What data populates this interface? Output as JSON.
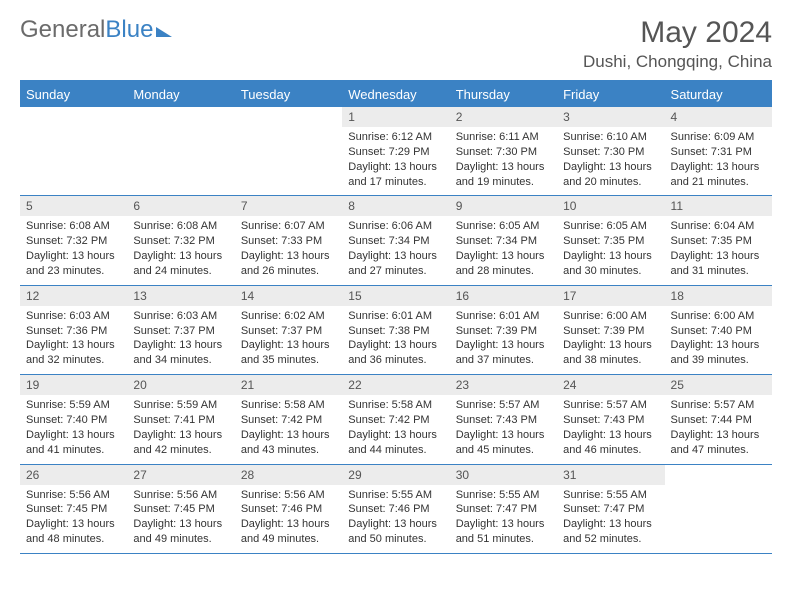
{
  "brand": {
    "general": "General",
    "blue": "Blue"
  },
  "header": {
    "month_title": "May 2024",
    "location": "Dushi, Chongqing, China"
  },
  "colors": {
    "accent": "#3b82c4",
    "text": "#333333",
    "muted": "#6b6b6b",
    "daynum_bg": "#ececec",
    "bg": "#ffffff"
  },
  "weekdays": [
    "Sunday",
    "Monday",
    "Tuesday",
    "Wednesday",
    "Thursday",
    "Friday",
    "Saturday"
  ],
  "weeks": [
    [
      {
        "n": "",
        "lines": []
      },
      {
        "n": "",
        "lines": []
      },
      {
        "n": "",
        "lines": []
      },
      {
        "n": "1",
        "lines": [
          "Sunrise: 6:12 AM",
          "Sunset: 7:29 PM",
          "Daylight: 13 hours",
          "and 17 minutes."
        ]
      },
      {
        "n": "2",
        "lines": [
          "Sunrise: 6:11 AM",
          "Sunset: 7:30 PM",
          "Daylight: 13 hours",
          "and 19 minutes."
        ]
      },
      {
        "n": "3",
        "lines": [
          "Sunrise: 6:10 AM",
          "Sunset: 7:30 PM",
          "Daylight: 13 hours",
          "and 20 minutes."
        ]
      },
      {
        "n": "4",
        "lines": [
          "Sunrise: 6:09 AM",
          "Sunset: 7:31 PM",
          "Daylight: 13 hours",
          "and 21 minutes."
        ]
      }
    ],
    [
      {
        "n": "5",
        "lines": [
          "Sunrise: 6:08 AM",
          "Sunset: 7:32 PM",
          "Daylight: 13 hours",
          "and 23 minutes."
        ]
      },
      {
        "n": "6",
        "lines": [
          "Sunrise: 6:08 AM",
          "Sunset: 7:32 PM",
          "Daylight: 13 hours",
          "and 24 minutes."
        ]
      },
      {
        "n": "7",
        "lines": [
          "Sunrise: 6:07 AM",
          "Sunset: 7:33 PM",
          "Daylight: 13 hours",
          "and 26 minutes."
        ]
      },
      {
        "n": "8",
        "lines": [
          "Sunrise: 6:06 AM",
          "Sunset: 7:34 PM",
          "Daylight: 13 hours",
          "and 27 minutes."
        ]
      },
      {
        "n": "9",
        "lines": [
          "Sunrise: 6:05 AM",
          "Sunset: 7:34 PM",
          "Daylight: 13 hours",
          "and 28 minutes."
        ]
      },
      {
        "n": "10",
        "lines": [
          "Sunrise: 6:05 AM",
          "Sunset: 7:35 PM",
          "Daylight: 13 hours",
          "and 30 minutes."
        ]
      },
      {
        "n": "11",
        "lines": [
          "Sunrise: 6:04 AM",
          "Sunset: 7:35 PM",
          "Daylight: 13 hours",
          "and 31 minutes."
        ]
      }
    ],
    [
      {
        "n": "12",
        "lines": [
          "Sunrise: 6:03 AM",
          "Sunset: 7:36 PM",
          "Daylight: 13 hours",
          "and 32 minutes."
        ]
      },
      {
        "n": "13",
        "lines": [
          "Sunrise: 6:03 AM",
          "Sunset: 7:37 PM",
          "Daylight: 13 hours",
          "and 34 minutes."
        ]
      },
      {
        "n": "14",
        "lines": [
          "Sunrise: 6:02 AM",
          "Sunset: 7:37 PM",
          "Daylight: 13 hours",
          "and 35 minutes."
        ]
      },
      {
        "n": "15",
        "lines": [
          "Sunrise: 6:01 AM",
          "Sunset: 7:38 PM",
          "Daylight: 13 hours",
          "and 36 minutes."
        ]
      },
      {
        "n": "16",
        "lines": [
          "Sunrise: 6:01 AM",
          "Sunset: 7:39 PM",
          "Daylight: 13 hours",
          "and 37 minutes."
        ]
      },
      {
        "n": "17",
        "lines": [
          "Sunrise: 6:00 AM",
          "Sunset: 7:39 PM",
          "Daylight: 13 hours",
          "and 38 minutes."
        ]
      },
      {
        "n": "18",
        "lines": [
          "Sunrise: 6:00 AM",
          "Sunset: 7:40 PM",
          "Daylight: 13 hours",
          "and 39 minutes."
        ]
      }
    ],
    [
      {
        "n": "19",
        "lines": [
          "Sunrise: 5:59 AM",
          "Sunset: 7:40 PM",
          "Daylight: 13 hours",
          "and 41 minutes."
        ]
      },
      {
        "n": "20",
        "lines": [
          "Sunrise: 5:59 AM",
          "Sunset: 7:41 PM",
          "Daylight: 13 hours",
          "and 42 minutes."
        ]
      },
      {
        "n": "21",
        "lines": [
          "Sunrise: 5:58 AM",
          "Sunset: 7:42 PM",
          "Daylight: 13 hours",
          "and 43 minutes."
        ]
      },
      {
        "n": "22",
        "lines": [
          "Sunrise: 5:58 AM",
          "Sunset: 7:42 PM",
          "Daylight: 13 hours",
          "and 44 minutes."
        ]
      },
      {
        "n": "23",
        "lines": [
          "Sunrise: 5:57 AM",
          "Sunset: 7:43 PM",
          "Daylight: 13 hours",
          "and 45 minutes."
        ]
      },
      {
        "n": "24",
        "lines": [
          "Sunrise: 5:57 AM",
          "Sunset: 7:43 PM",
          "Daylight: 13 hours",
          "and 46 minutes."
        ]
      },
      {
        "n": "25",
        "lines": [
          "Sunrise: 5:57 AM",
          "Sunset: 7:44 PM",
          "Daylight: 13 hours",
          "and 47 minutes."
        ]
      }
    ],
    [
      {
        "n": "26",
        "lines": [
          "Sunrise: 5:56 AM",
          "Sunset: 7:45 PM",
          "Daylight: 13 hours",
          "and 48 minutes."
        ]
      },
      {
        "n": "27",
        "lines": [
          "Sunrise: 5:56 AM",
          "Sunset: 7:45 PM",
          "Daylight: 13 hours",
          "and 49 minutes."
        ]
      },
      {
        "n": "28",
        "lines": [
          "Sunrise: 5:56 AM",
          "Sunset: 7:46 PM",
          "Daylight: 13 hours",
          "and 49 minutes."
        ]
      },
      {
        "n": "29",
        "lines": [
          "Sunrise: 5:55 AM",
          "Sunset: 7:46 PM",
          "Daylight: 13 hours",
          "and 50 minutes."
        ]
      },
      {
        "n": "30",
        "lines": [
          "Sunrise: 5:55 AM",
          "Sunset: 7:47 PM",
          "Daylight: 13 hours",
          "and 51 minutes."
        ]
      },
      {
        "n": "31",
        "lines": [
          "Sunrise: 5:55 AM",
          "Sunset: 7:47 PM",
          "Daylight: 13 hours",
          "and 52 minutes."
        ]
      },
      {
        "n": "",
        "lines": []
      }
    ]
  ]
}
